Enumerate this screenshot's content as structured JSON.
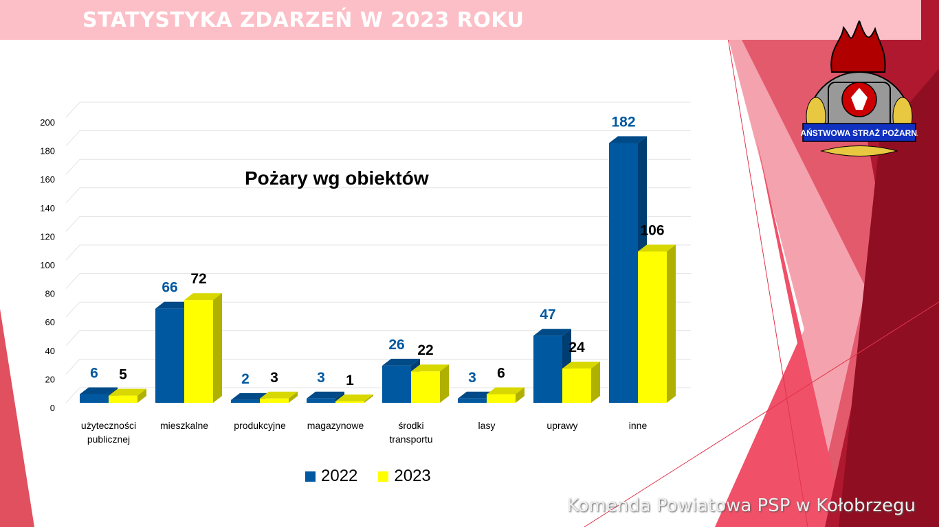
{
  "header": {
    "title": "STATYSTYKA ZDARZEŃ W 2023 ROKU"
  },
  "footer": {
    "text": "Komenda Powiatowa PSP w Kołobrzegu"
  },
  "logo": {
    "text": "PAŃSTWOWA STRAŻ POŻARNA"
  },
  "colors": {
    "series_2022": "#0058a0",
    "series_2023": "#ffff00",
    "header_band": "#fcbfc7",
    "accent_red": "#e0344c"
  },
  "chart_data": {
    "type": "bar",
    "title": "Pożary wg obiektów",
    "categories": [
      "użyteczności publicznej",
      "mieszkalne",
      "produkcyjne",
      "magazynowe",
      "środki transportu",
      "lasy",
      "uprawy",
      "inne"
    ],
    "series": [
      {
        "name": "2022",
        "values": [
          6,
          66,
          2,
          3,
          26,
          3,
          47,
          182
        ]
      },
      {
        "name": "2023",
        "values": [
          5,
          72,
          3,
          1,
          22,
          6,
          24,
          106
        ]
      }
    ],
    "yticks": [
      "0",
      "20",
      "40",
      "60",
      "80",
      "100",
      "120",
      "140",
      "160",
      "180",
      "200"
    ],
    "ylim": [
      0,
      200
    ],
    "grid": true,
    "style": "3d-column",
    "legend": "bottom"
  }
}
